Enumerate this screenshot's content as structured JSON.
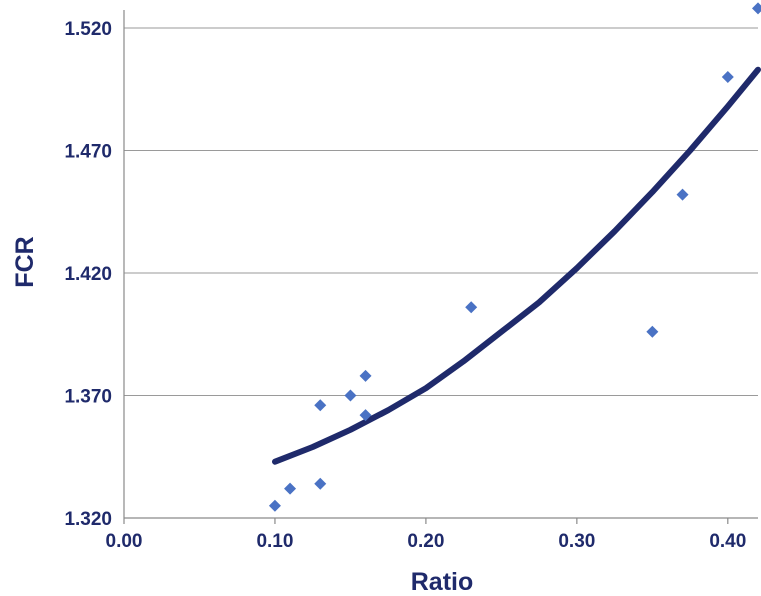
{
  "chart_data": {
    "type": "scatter",
    "title": "",
    "xlabel": "Ratio",
    "ylabel": "FCR",
    "xlim": [
      0.0,
      0.42
    ],
    "ylim": [
      1.32,
      1.52
    ],
    "x_ticks": [
      "0.00",
      "0.10",
      "0.20",
      "0.30",
      "0.40"
    ],
    "y_ticks": [
      "1.320",
      "1.370",
      "1.420",
      "1.470",
      "1.520"
    ],
    "grid": "horizontal",
    "legend": "none",
    "colors": {
      "points": "#4a72c4",
      "trend": "#1f2a6b",
      "text": "#1f2a6b"
    },
    "points": [
      {
        "x": 0.1,
        "y": 1.325
      },
      {
        "x": 0.11,
        "y": 1.332
      },
      {
        "x": 0.13,
        "y": 1.334
      },
      {
        "x": 0.13,
        "y": 1.366
      },
      {
        "x": 0.15,
        "y": 1.37
      },
      {
        "x": 0.16,
        "y": 1.362
      },
      {
        "x": 0.16,
        "y": 1.378
      },
      {
        "x": 0.23,
        "y": 1.406
      },
      {
        "x": 0.35,
        "y": 1.396
      },
      {
        "x": 0.37,
        "y": 1.452
      },
      {
        "x": 0.4,
        "y": 1.5
      },
      {
        "x": 0.42,
        "y": 1.528
      }
    ],
    "trendline": {
      "x": [
        0.1,
        0.125,
        0.15,
        0.175,
        0.2,
        0.225,
        0.25,
        0.275,
        0.3,
        0.325,
        0.35,
        0.375,
        0.4,
        0.42
      ],
      "y": [
        1.343,
        1.349,
        1.356,
        1.364,
        1.373,
        1.384,
        1.396,
        1.408,
        1.422,
        1.437,
        1.453,
        1.47,
        1.488,
        1.503
      ]
    }
  }
}
